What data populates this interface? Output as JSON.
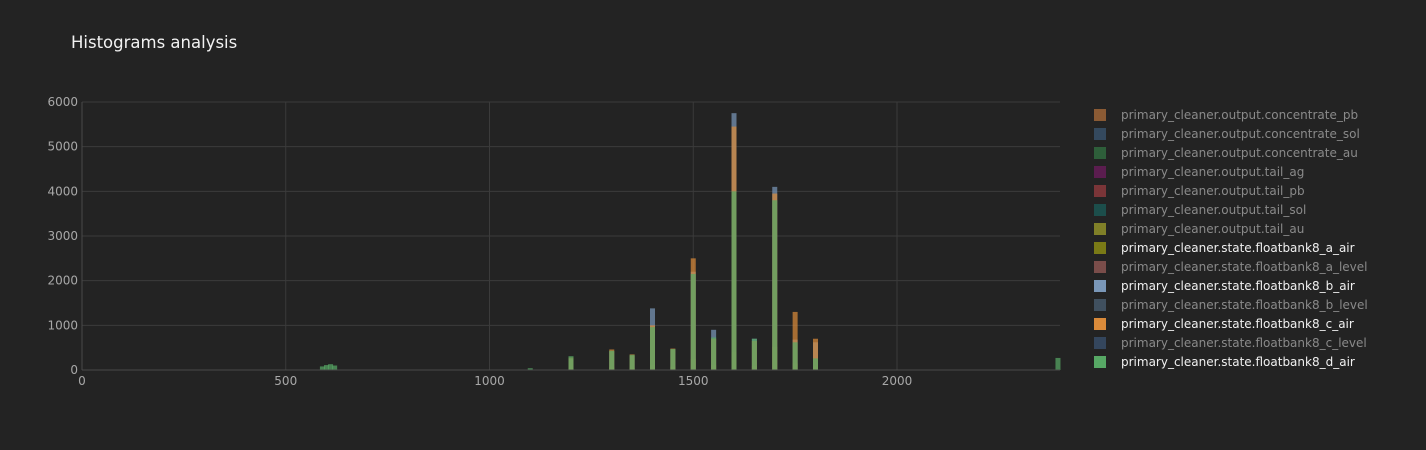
{
  "chart_data": {
    "type": "bar",
    "title": "Histograms analysis",
    "xlabel": "",
    "ylabel": "",
    "barmode": "overlay",
    "xlim": [
      0,
      2400
    ],
    "ylim": [
      0,
      6000
    ],
    "xticks": [
      0,
      500,
      1000,
      1500,
      2000
    ],
    "yticks": [
      0,
      1000,
      2000,
      3000,
      4000,
      5000,
      6000
    ],
    "grid": true,
    "legend_position": "right",
    "series": [
      {
        "name": "primary_cleaner.output.concentrate_pb",
        "color": "#8a5a34",
        "visible": false,
        "x": [],
        "values": []
      },
      {
        "name": "primary_cleaner.output.concentrate_sol",
        "color": "#34495e",
        "visible": false,
        "x": [],
        "values": []
      },
      {
        "name": "primary_cleaner.output.concentrate_au",
        "color": "#2e5e3a",
        "visible": false,
        "x": [],
        "values": []
      },
      {
        "name": "primary_cleaner.output.tail_ag",
        "color": "#5b1d4f",
        "visible": false,
        "x": [],
        "values": []
      },
      {
        "name": "primary_cleaner.output.tail_pb",
        "color": "#7a3538",
        "visible": false,
        "x": [],
        "values": []
      },
      {
        "name": "primary_cleaner.output.tail_sol",
        "color": "#1c4e4b",
        "visible": false,
        "x": [],
        "values": []
      },
      {
        "name": "primary_cleaner.output.tail_au",
        "color": "#808028",
        "visible": false,
        "x": [],
        "values": []
      },
      {
        "name": "primary_cleaner.state.floatbank8_a_air",
        "color": "#7a7a16",
        "visible": true,
        "x": [
          1200,
          1300,
          1350,
          1400,
          1450,
          1500,
          1550,
          1600,
          1650,
          1700,
          1750,
          1800
        ],
        "values": [
          40,
          60,
          45,
          120,
          70,
          250,
          110,
          400,
          90,
          520,
          150,
          80
        ]
      },
      {
        "name": "primary_cleaner.state.floatbank8_a_level",
        "color": "#7a4d4a",
        "visible": false,
        "x": [],
        "values": []
      },
      {
        "name": "primary_cleaner.state.floatbank8_b_air",
        "color": "#7a97b8",
        "visible": true,
        "x": [
          1200,
          1300,
          1350,
          1400,
          1450,
          1500,
          1550,
          1600,
          1650,
          1700,
          1750,
          1800
        ],
        "values": [
          250,
          420,
          320,
          1380,
          460,
          2200,
          900,
          5750,
          700,
          4100,
          680,
          620
        ]
      },
      {
        "name": "primary_cleaner.state.floatbank8_b_level",
        "color": "#40505f",
        "visible": false,
        "x": [],
        "values": []
      },
      {
        "name": "primary_cleaner.state.floatbank8_c_air",
        "color": "#d98a3a",
        "visible": true,
        "x": [
          1200,
          1300,
          1350,
          1400,
          1450,
          1500,
          1550,
          1600,
          1650,
          1700,
          1750,
          1800
        ],
        "values": [
          280,
          460,
          350,
          1000,
          480,
          2500,
          700,
          5450,
          650,
          3950,
          1300,
          700
        ]
      },
      {
        "name": "primary_cleaner.state.floatbank8_c_level",
        "color": "#34465d",
        "visible": false,
        "x": [],
        "values": []
      },
      {
        "name": "primary_cleaner.state.floatbank8_d_air",
        "color": "#57a865",
        "visible": true,
        "x": [
          590,
          600,
          610,
          620,
          1100,
          1200,
          1300,
          1350,
          1400,
          1450,
          1500,
          1550,
          1600,
          1650,
          1700,
          1750,
          1800,
          2395
        ],
        "values": [
          80,
          110,
          130,
          100,
          40,
          310,
          430,
          340,
          960,
          470,
          2150,
          730,
          4000,
          700,
          3800,
          620,
          260,
          270
        ]
      }
    ]
  }
}
